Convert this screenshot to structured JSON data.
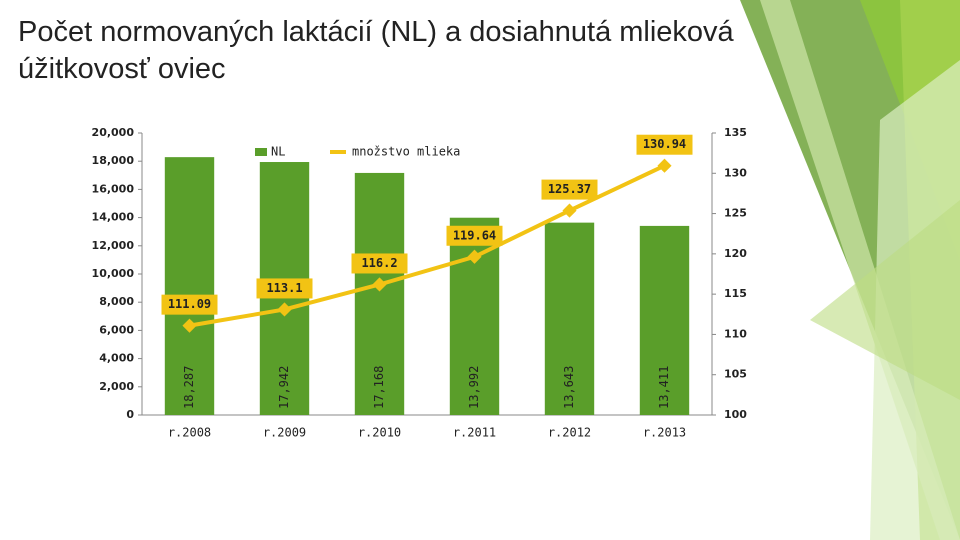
{
  "chart_data": {
    "type": "bar",
    "title": "Počet normovaných laktácií (NL) a dosiahnutá mlieková úžitkovosť oviec",
    "categories": [
      "r.2008",
      "r.2009",
      "r.2010",
      "r.2011",
      "r.2012",
      "r.2013"
    ],
    "series": [
      {
        "name": "NL",
        "type": "bar",
        "color": "#5a9e2a",
        "values": [
          18287,
          17942,
          17168,
          13992,
          13643,
          13411
        ],
        "value_labels": [
          "18,287",
          "17,942",
          "17,168",
          "13,992",
          "13,643",
          "13,411"
        ]
      },
      {
        "name": "množstvo mlieka",
        "type": "line",
        "axis": "y2",
        "color": "#f2c314",
        "values": [
          111.09,
          113.1,
          116.2,
          119.64,
          125.37,
          130.94
        ]
      }
    ],
    "ylim": [
      0,
      20000
    ],
    "yticks": [
      0,
      {
        "value": 2000,
        "label": "2,000"
      },
      {
        "value": 4000,
        "label": "4,000"
      },
      {
        "value": 6000,
        "label": "6,000"
      },
      {
        "value": 8000,
        "label": "8,000"
      },
      {
        "value": 10000,
        "label": "10,000"
      },
      {
        "value": 12000,
        "label": "12,000"
      },
      {
        "value": 14000,
        "label": "14,000"
      },
      {
        "value": 16000,
        "label": "16,000"
      },
      {
        "value": 18000,
        "label": "18,000"
      },
      {
        "value": 20000,
        "label": "20,000"
      }
    ],
    "y2lim": [
      100,
      135
    ],
    "y2ticks": [
      100,
      105,
      110,
      115,
      120,
      125,
      130,
      135
    ],
    "legend": "top"
  }
}
